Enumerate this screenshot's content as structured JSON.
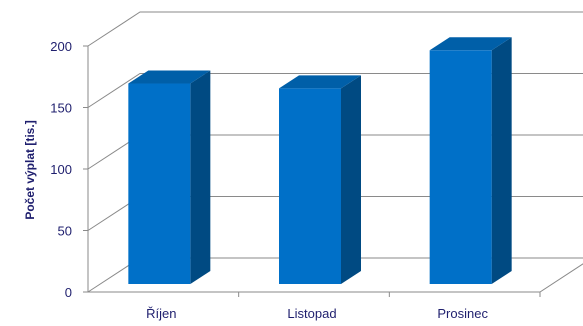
{
  "chart_data": {
    "type": "bar",
    "style": "3d-column",
    "title": "",
    "xlabel": "",
    "ylabel": "Počet výplat [tis.]",
    "categories": [
      "Říjen",
      "Listopad",
      "Prosinec"
    ],
    "values": [
      163,
      159,
      190
    ],
    "ylim": [
      0,
      200
    ],
    "yticks": [
      0,
      50,
      100,
      150,
      200
    ],
    "grid": true,
    "legend": "none",
    "colors": {
      "bar_front": "#0070c8",
      "bar_side": "#004a82",
      "bar_top": "#005fa8",
      "grid": "#8a8a8a"
    }
  }
}
